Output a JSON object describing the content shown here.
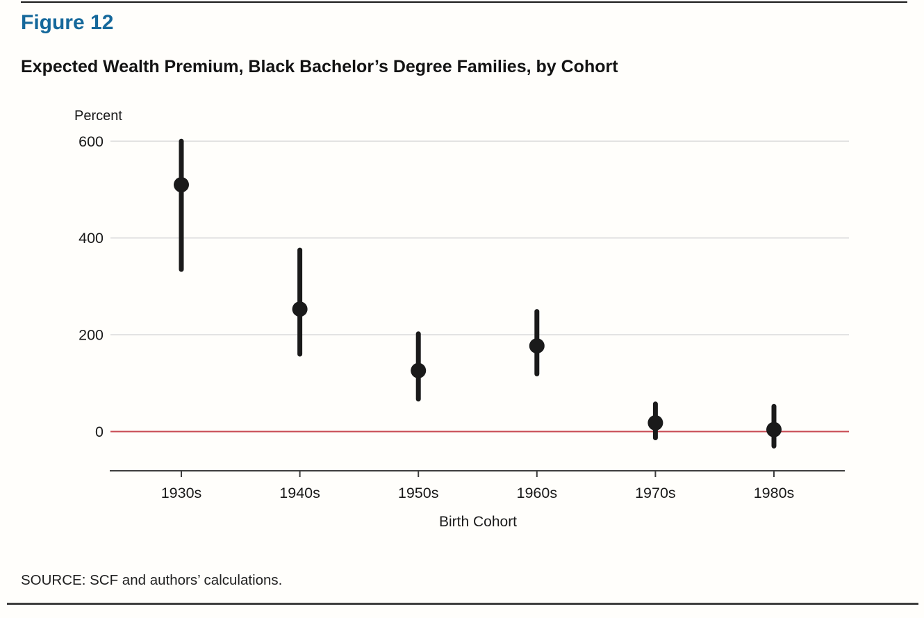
{
  "page": {
    "figure_label": "Figure 12",
    "title": "Expected Wealth Premium, Black Bachelor’s Degree Families, by Cohort",
    "source": "SOURCE: SCF and authors’ calculations."
  },
  "colors": {
    "accent_blue": "#15689b",
    "zero_line_red": "#c84a52",
    "point_black": "#1a1a1a",
    "gridline_gray": "#dcdcdc",
    "axis_gray": "#3d3d3d",
    "label_gray": "#1a1a1a"
  },
  "chart_data": {
    "type": "scatter",
    "subtype": "point-range",
    "title": "Expected Wealth Premium, Black Bachelor’s Degree Families, by Cohort",
    "xlabel": "Birth Cohort",
    "ylabel": "Percent",
    "categories": [
      "1930s",
      "1940s",
      "1950s",
      "1960s",
      "1970s",
      "1980s"
    ],
    "series": [
      {
        "name": "Expected wealth premium, percent",
        "means": [
          510,
          253,
          126,
          177,
          18,
          4
        ],
        "ci_low": [
          335,
          160,
          67,
          119,
          -13,
          -30
        ],
        "ci_high": [
          600,
          375,
          202,
          248,
          57,
          52
        ]
      }
    ],
    "yticks": [
      0,
      200,
      400,
      600
    ],
    "ylim": [
      -80,
      615
    ],
    "grid": "horizontal",
    "zero_line": true,
    "legend": "none"
  }
}
